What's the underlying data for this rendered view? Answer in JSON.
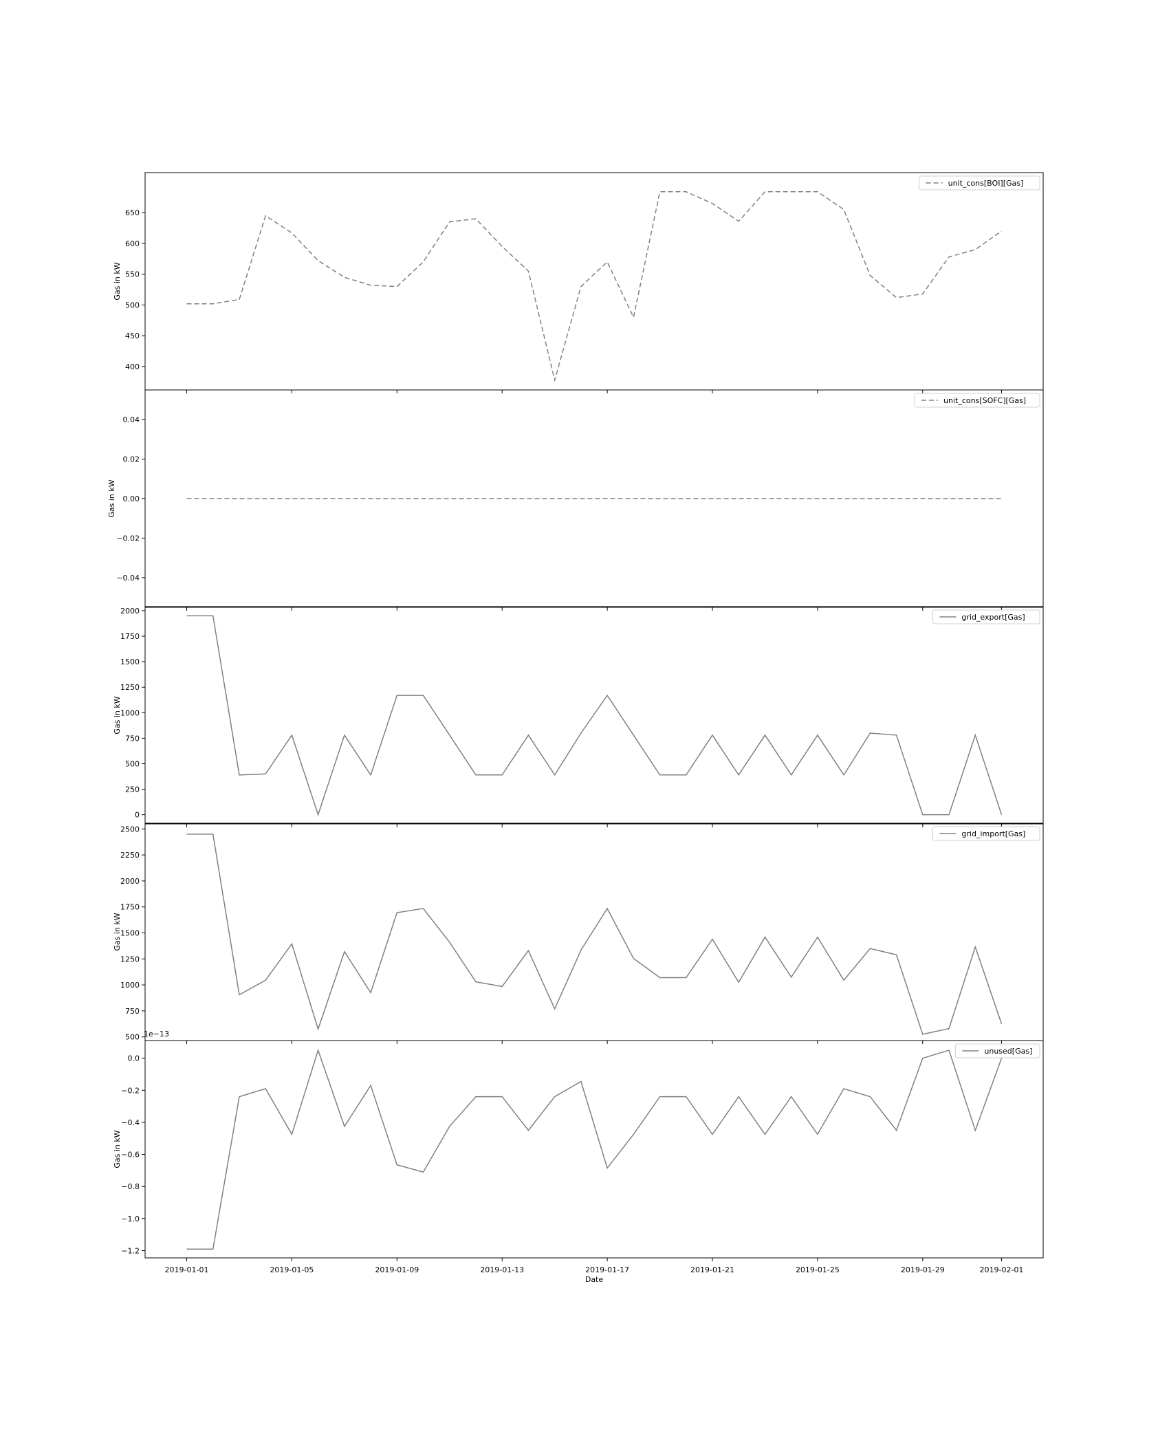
{
  "chart_data": [
    {
      "type": "line",
      "ylabel": "Gas in kW",
      "ylim": [
        362,
        715
      ],
      "yticks": [
        400,
        450,
        500,
        550,
        600,
        650
      ],
      "ytick_labels": [
        "400",
        "450",
        "500",
        "550",
        "600",
        "650"
      ],
      "legend_position": "upper-right",
      "series": [
        {
          "name": "unit_cons[BOI][Gas]",
          "line_style": "dashed",
          "color": "#808080",
          "values": [
            502,
            502,
            509,
            645,
            617,
            572,
            545,
            532,
            530,
            570,
            635,
            640,
            595,
            555,
            378,
            530,
            570,
            480,
            684,
            684,
            665,
            636,
            684,
            684,
            684,
            655,
            548,
            512,
            518,
            578,
            590,
            620
          ]
        }
      ]
    },
    {
      "type": "line",
      "ylabel": "Gas in kW",
      "ylim": [
        -0.055,
        0.055
      ],
      "yticks": [
        -0.04,
        -0.02,
        0.0,
        0.02,
        0.04
      ],
      "ytick_labels": [
        "−0.04",
        "−0.02",
        "0.00",
        "0.02",
        "0.04"
      ],
      "legend_position": "upper-right",
      "series": [
        {
          "name": "unit_cons[SOFC][Gas]",
          "line_style": "dashed",
          "color": "#808080",
          "values": [
            0,
            0,
            0,
            0,
            0,
            0,
            0,
            0,
            0,
            0,
            0,
            0,
            0,
            0,
            0,
            0,
            0,
            0,
            0,
            0,
            0,
            0,
            0,
            0,
            0,
            0,
            0,
            0,
            0,
            0,
            0,
            0
          ]
        }
      ]
    },
    {
      "type": "line",
      "ylabel": "Gas in kW",
      "ylim": [
        -90,
        2040
      ],
      "yticks": [
        0,
        250,
        500,
        750,
        1000,
        1250,
        1500,
        1750,
        2000
      ],
      "ytick_labels": [
        "0",
        "250",
        "500",
        "750",
        "1000",
        "1250",
        "1500",
        "1750",
        "2000"
      ],
      "legend_position": "upper-right",
      "series": [
        {
          "name": "grid_export[Gas]",
          "line_style": "solid",
          "color": "#808080",
          "values": [
            1950,
            1950,
            390,
            400,
            780,
            0,
            780,
            390,
            1170,
            1170,
            780,
            390,
            390,
            780,
            390,
            800,
            1170,
            780,
            390,
            390,
            780,
            390,
            780,
            390,
            780,
            390,
            800,
            780,
            0,
            0,
            780,
            0
          ]
        }
      ]
    },
    {
      "type": "line",
      "ylabel": "Gas in kW",
      "ylim": [
        465,
        2555
      ],
      "yticks": [
        500,
        750,
        1000,
        1250,
        1500,
        1750,
        2000,
        2250,
        2500
      ],
      "ytick_labels": [
        "500",
        "750",
        "1000",
        "1250",
        "1500",
        "1750",
        "2000",
        "2250",
        "2500"
      ],
      "legend_position": "upper-right",
      "series": [
        {
          "name": "grid_import[Gas]",
          "line_style": "solid",
          "color": "#808080",
          "values": [
            2450,
            2450,
            905,
            1045,
            1395,
            575,
            1320,
            925,
            1695,
            1735,
            1410,
            1030,
            985,
            1330,
            770,
            1335,
            1735,
            1255,
            1070,
            1070,
            1440,
            1025,
            1460,
            1075,
            1460,
            1045,
            1350,
            1290,
            525,
            580,
            1365,
            625
          ]
        }
      ]
    },
    {
      "type": "line",
      "ylabel": "Gas in kW",
      "offset_label": "1e−13",
      "ylim": [
        -1.245,
        0.11
      ],
      "yticks": [
        -1.2,
        -1.0,
        -0.8,
        -0.6,
        -0.4,
        -0.2,
        0.0
      ],
      "ytick_labels": [
        "−1.2",
        "−1.0",
        "−0.8",
        "−0.6",
        "−0.4",
        "−0.2",
        "0.0"
      ],
      "xlabel": "Date",
      "legend_position": "upper-right",
      "series": [
        {
          "name": "unused[Gas]",
          "line_style": "solid",
          "color": "#808080",
          "values": [
            -1.19,
            -1.19,
            -0.24,
            -0.19,
            -0.475,
            0.05,
            -0.425,
            -0.17,
            -0.665,
            -0.71,
            -0.425,
            -0.24,
            -0.24,
            -0.45,
            -0.24,
            -0.145,
            -0.685,
            -0.475,
            -0.24,
            -0.24,
            -0.475,
            -0.24,
            -0.475,
            -0.24,
            -0.475,
            -0.19,
            -0.24,
            -0.45,
            0.0,
            0.05,
            -0.45,
            0.0
          ]
        }
      ]
    }
  ],
  "x_axis": {
    "dates": [
      "2019-01-01",
      "2019-01-02",
      "2019-01-03",
      "2019-01-04",
      "2019-01-05",
      "2019-01-06",
      "2019-01-07",
      "2019-01-08",
      "2019-01-09",
      "2019-01-10",
      "2019-01-11",
      "2019-01-12",
      "2019-01-13",
      "2019-01-14",
      "2019-01-15",
      "2019-01-16",
      "2019-01-17",
      "2019-01-18",
      "2019-01-19",
      "2019-01-20",
      "2019-01-21",
      "2019-01-22",
      "2019-01-23",
      "2019-01-24",
      "2019-01-25",
      "2019-01-26",
      "2019-01-27",
      "2019-01-28",
      "2019-01-29",
      "2019-01-30",
      "2019-01-31",
      "2019-02-01"
    ],
    "xlim": [
      "2018-12-30T10:00",
      "2019-02-02T14:00"
    ],
    "tick_labels": [
      "2019-01-01",
      "2019-01-05",
      "2019-01-09",
      "2019-01-13",
      "2019-01-17",
      "2019-01-21",
      "2019-01-25",
      "2019-01-29",
      "2019-02-01"
    ]
  }
}
